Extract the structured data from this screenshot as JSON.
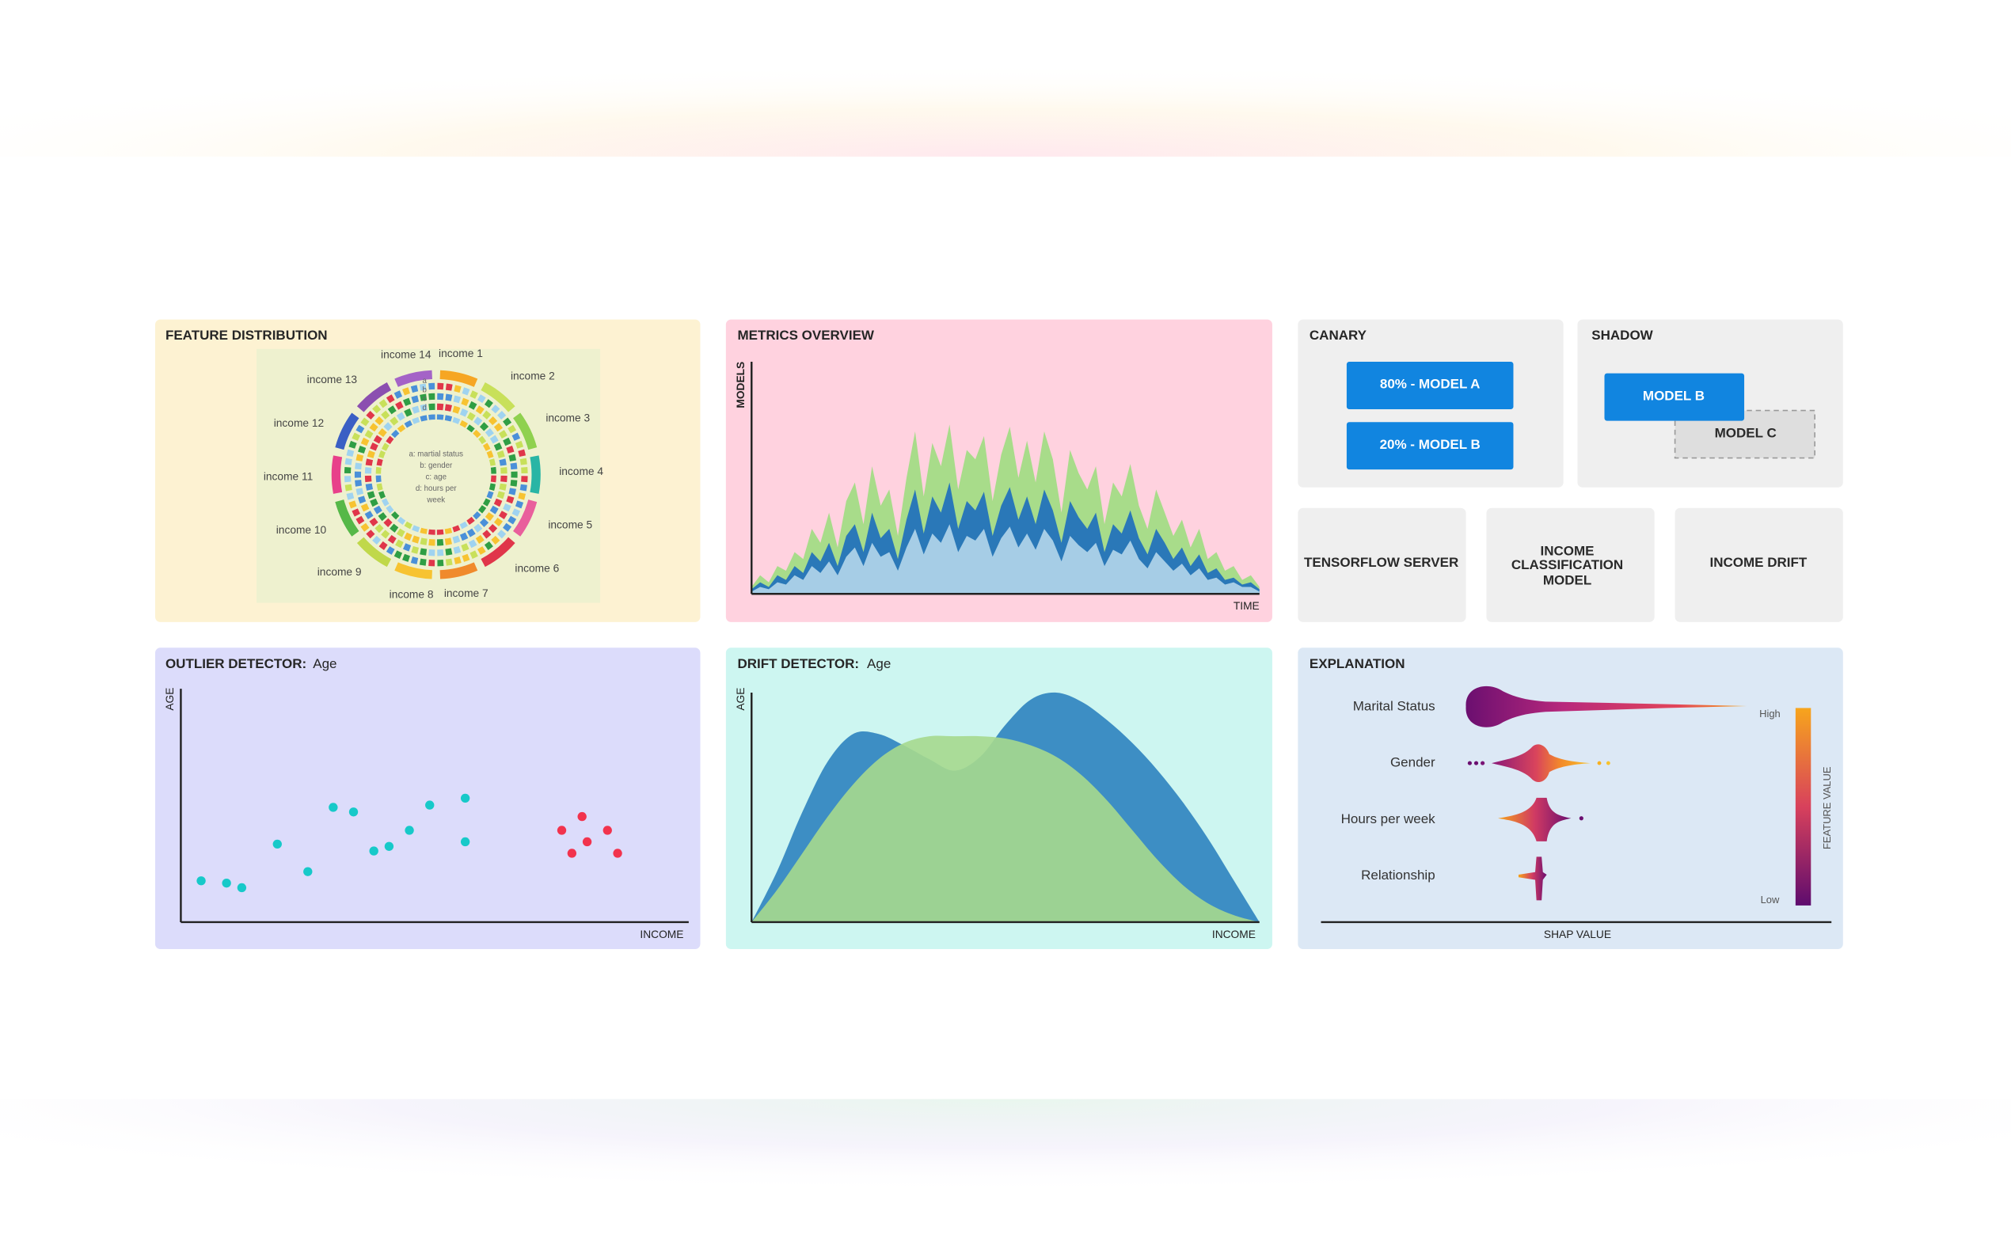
{
  "feature_distribution": {
    "title": "FEATURE DISTRIBUTION",
    "labels": [
      "income 1",
      "income 2",
      "income 3",
      "income 4",
      "income 5",
      "income 6",
      "income 7",
      "income 8",
      "income 9",
      "income 10",
      "income 11",
      "income 12",
      "income 13",
      "income 14"
    ],
    "ring_letters": [
      "a",
      "b",
      "c",
      "d"
    ],
    "legend": [
      "a: martial status",
      "b: gender",
      "c: age",
      "d: hours per",
      "week"
    ]
  },
  "metrics_overview": {
    "title": "METRICS OVERVIEW",
    "y_label": "MODELS",
    "x_label": "TIME",
    "ylim": [
      0,
      100
    ],
    "series": [
      {
        "color": "#a8dc8a",
        "values": [
          3,
          8,
          5,
          12,
          10,
          18,
          15,
          28,
          22,
          35,
          20,
          40,
          48,
          30,
          55,
          38,
          45,
          25,
          50,
          70,
          42,
          65,
          55,
          73,
          45,
          62,
          58,
          68,
          40,
          60,
          72,
          50,
          66,
          48,
          70,
          58,
          35,
          62,
          52,
          45,
          55,
          30,
          48,
          42,
          56,
          38,
          28,
          45,
          35,
          25,
          32,
          20,
          28,
          15,
          18,
          10,
          12,
          6,
          8,
          3
        ]
      },
      {
        "color": "#2a78b8",
        "values": [
          2,
          5,
          3,
          8,
          6,
          12,
          9,
          18,
          14,
          22,
          12,
          25,
          30,
          18,
          35,
          24,
          28,
          15,
          32,
          45,
          26,
          42,
          35,
          48,
          28,
          40,
          36,
          44,
          25,
          38,
          46,
          32,
          42,
          30,
          45,
          36,
          22,
          40,
          33,
          28,
          35,
          18,
          30,
          26,
          36,
          24,
          17,
          28,
          22,
          15,
          20,
          12,
          17,
          9,
          11,
          6,
          7,
          4,
          5,
          2
        ]
      },
      {
        "color": "#a6cde6",
        "values": [
          1,
          3,
          2,
          5,
          4,
          8,
          6,
          12,
          9,
          14,
          8,
          16,
          20,
          12,
          22,
          16,
          18,
          10,
          20,
          28,
          17,
          26,
          22,
          30,
          18,
          25,
          23,
          28,
          16,
          24,
          29,
          20,
          26,
          19,
          28,
          23,
          14,
          25,
          21,
          18,
          22,
          12,
          19,
          17,
          23,
          15,
          11,
          18,
          14,
          10,
          13,
          8,
          11,
          6,
          7,
          4,
          5,
          3,
          3,
          1
        ]
      }
    ]
  },
  "canary": {
    "title": "CANARY",
    "buttons": [
      "80% - MODEL A",
      "20% - MODEL B"
    ]
  },
  "shadow": {
    "title": "SHADOW",
    "primary": "MODEL B",
    "shadow": "MODEL C"
  },
  "components": [
    {
      "lines": [
        "TENSORFLOW SERVER"
      ]
    },
    {
      "lines": [
        "INCOME",
        "CLASSIFICATION",
        "MODEL"
      ]
    },
    {
      "lines": [
        "INCOME DRIFT"
      ]
    }
  ],
  "outlier_detector": {
    "title": "OUTLIER DETECTOR:",
    "feature": "Age",
    "y_label": "AGE",
    "x_label": "INCOME",
    "xlim": [
      0,
      100
    ],
    "ylim": [
      0,
      100
    ],
    "series": [
      {
        "color": "#17c9c9",
        "x": [
          4,
          9,
          12,
          19,
          25,
          30,
          34,
          38,
          41,
          45,
          49,
          56,
          56
        ],
        "y": [
          18,
          17,
          15,
          34,
          22,
          50,
          48,
          31,
          33,
          40,
          51,
          54,
          35
        ]
      },
      {
        "color": "#f2334d",
        "x": [
          75,
          79,
          84,
          80,
          77,
          86
        ],
        "y": [
          40,
          46,
          40,
          35,
          30,
          30
        ]
      }
    ]
  },
  "drift_detector": {
    "title": "DRIFT DETECTOR:",
    "feature": "Age",
    "y_label": "AGE",
    "x_label": "INCOME",
    "ylim": [
      0,
      100
    ],
    "series": [
      {
        "color": "#3d8ec4",
        "values": [
          0,
          22,
          48,
          70,
          82,
          82,
          77,
          71,
          66,
          72,
          86,
          97,
          100,
          96,
          88,
          78,
          66,
          52,
          36,
          18,
          0
        ]
      },
      {
        "color": "#a6d98e",
        "values": [
          0,
          14,
          30,
          46,
          60,
          71,
          78,
          81,
          81,
          81,
          80,
          77,
          72,
          64,
          53,
          40,
          27,
          16,
          8,
          3,
          0
        ]
      }
    ]
  },
  "explanation": {
    "title": "EXPLANATION",
    "features": [
      "Marital Status",
      "Gender",
      "Hours per week",
      "Relationship"
    ],
    "high": "High",
    "low": "Low",
    "legend_label": "FEATURE VALUE",
    "x_label": "SHAP VALUE"
  }
}
